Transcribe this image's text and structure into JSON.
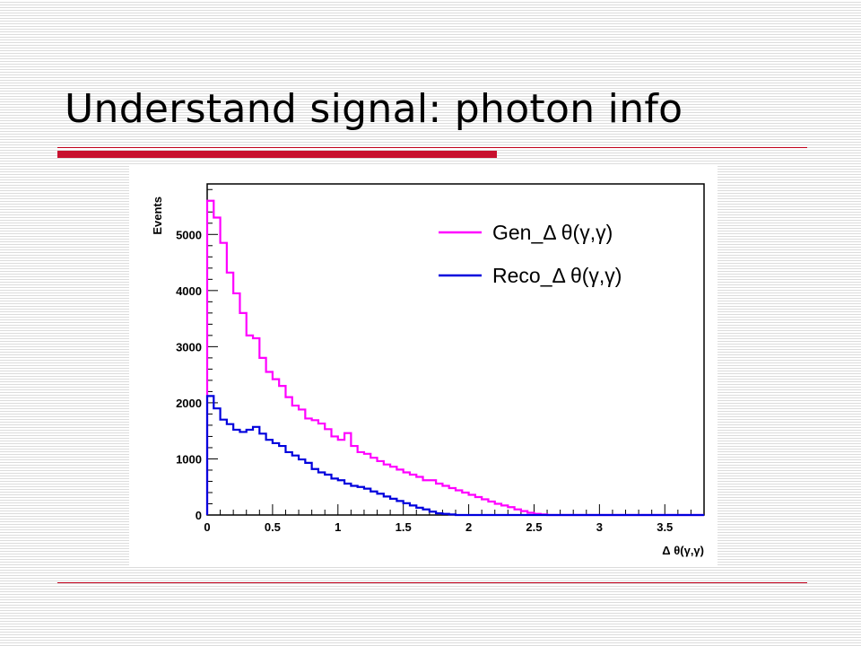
{
  "slide": {
    "title": "Understand signal: photon info",
    "colors": {
      "title_rule": "#c8102e",
      "stripes": "#dcdcdc"
    }
  },
  "chart_data": {
    "type": "line",
    "step": true,
    "xlabel": "Δ θ(γ,γ)",
    "ylabel": "Events",
    "xlim": [
      0,
      3.8
    ],
    "ylim": [
      0,
      5900
    ],
    "x_ticks": [
      0,
      0.5,
      1,
      1.5,
      2,
      2.5,
      3,
      3.5
    ],
    "x_tick_labels": [
      "0",
      "0.5",
      "1",
      "1.5",
      "2",
      "2.5",
      "3",
      "3.5"
    ],
    "y_ticks": [
      0,
      1000,
      2000,
      3000,
      4000,
      5000
    ],
    "y_tick_labels": [
      "0",
      "1000",
      "2000",
      "3000",
      "4000",
      "5000"
    ],
    "bin_width": 0.05,
    "legend": {
      "position": "top-right"
    },
    "series": [
      {
        "name": "Gen_Δ θ(γ,γ)",
        "color": "#ff00ff",
        "values": [
          5600,
          5300,
          4850,
          4320,
          3950,
          3600,
          3200,
          3150,
          2800,
          2550,
          2420,
          2300,
          2100,
          1950,
          1880,
          1720,
          1690,
          1630,
          1530,
          1400,
          1340,
          1460,
          1230,
          1120,
          1090,
          1020,
          960,
          900,
          860,
          810,
          760,
          720,
          680,
          620,
          620,
          560,
          520,
          480,
          440,
          400,
          360,
          320,
          280,
          240,
          200,
          170,
          140,
          100,
          70,
          40,
          20,
          10,
          0,
          0,
          0,
          0,
          0,
          0,
          0,
          0,
          0,
          0,
          0,
          0,
          0,
          0,
          0,
          0,
          0,
          0,
          0,
          0,
          0,
          0,
          0,
          0
        ]
      },
      {
        "name": "Reco_Δ θ(γ,γ)",
        "color": "#0000dd",
        "values": [
          2120,
          1900,
          1700,
          1620,
          1520,
          1480,
          1520,
          1570,
          1450,
          1340,
          1280,
          1230,
          1120,
          1060,
          990,
          930,
          820,
          760,
          720,
          650,
          620,
          560,
          520,
          500,
          470,
          420,
          380,
          330,
          290,
          250,
          210,
          170,
          130,
          100,
          60,
          30,
          20,
          10,
          0,
          0,
          0,
          0,
          0,
          0,
          0,
          0,
          0,
          0,
          0,
          0,
          0,
          0,
          0,
          0,
          0,
          0,
          0,
          0,
          0,
          0,
          0,
          0,
          0,
          0,
          0,
          0,
          0,
          0,
          0,
          0,
          0,
          0,
          0,
          0,
          0,
          0
        ]
      }
    ]
  }
}
